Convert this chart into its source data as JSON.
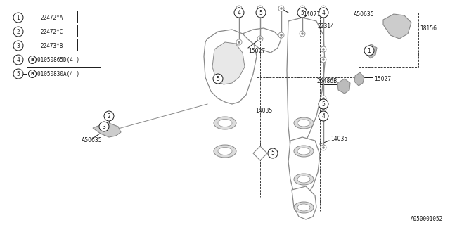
{
  "bg_color": "#ffffff",
  "line_color": "#1a1a1a",
  "gray_color": "#888888",
  "part_number_footer": "A050001052",
  "legend": [
    {
      "num": "1",
      "label": "22472*A",
      "bold_box": false
    },
    {
      "num": "2",
      "label": "22472*C",
      "bold_box": false
    },
    {
      "num": "3",
      "label": "22473*B",
      "bold_box": false
    },
    {
      "num": "4",
      "label": "01050865D(4 )",
      "bold_box": true
    },
    {
      "num": "5",
      "label": "01050830A(4 )",
      "bold_box": true
    }
  ],
  "figsize": [
    6.4,
    3.2
  ],
  "dpi": 100
}
